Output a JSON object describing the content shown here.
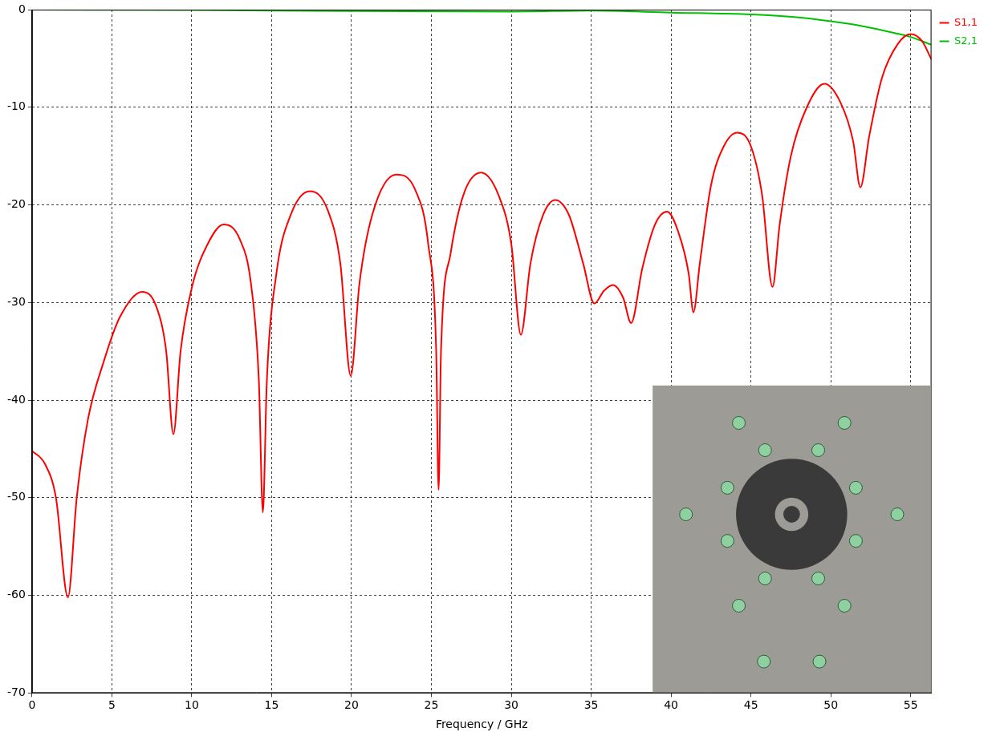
{
  "chart_data": {
    "type": "line",
    "x_label": "Frequency / GHz",
    "xlim": [
      0,
      56.3
    ],
    "xticks": [
      0,
      5,
      10,
      15,
      20,
      25,
      30,
      35,
      40,
      45,
      50,
      55
    ],
    "ylim": [
      -70,
      0
    ],
    "yticks": [
      -70,
      -60,
      -50,
      -40,
      -30,
      -20,
      -10,
      0
    ],
    "grid": true,
    "legend": "right",
    "series": [
      {
        "name": "S1,1",
        "color": "#ff0000",
        "x": [
          0,
          0.8,
          1.5,
          2.25,
          2.8,
          3.5,
          4.5,
          5.5,
          6.9,
          7.8,
          8.4,
          8.85,
          9.3,
          10,
          11,
          12,
          13,
          13.7,
          14.2,
          14.45,
          14.7,
          15.3,
          16.2,
          17.4,
          18.5,
          19.3,
          19.95,
          20.5,
          21.3,
          22.8,
          24,
          24.8,
          25.3,
          25.45,
          25.6,
          26.2,
          27,
          28.1,
          29.2,
          30,
          30.6,
          31.2,
          32,
          32.75,
          33.6,
          34.5,
          35.2,
          35.8,
          36.35,
          37,
          37.5,
          38.2,
          39,
          39.75,
          40.5,
          41.1,
          41.4,
          41.8,
          42.5,
          43.3,
          44.15,
          45,
          45.7,
          46.35,
          46.8,
          47.5,
          48.5,
          49.6,
          50.6,
          51.4,
          51.85,
          52.4,
          53.2,
          54.2,
          55,
          55.7,
          56.3
        ],
        "values": [
          -45.2,
          -46.5,
          -50,
          -60.2,
          -50,
          -42,
          -36,
          -31.5,
          -28.9,
          -30.5,
          -35,
          -43.5,
          -35,
          -28.5,
          -24,
          -22,
          -23.5,
          -28,
          -38,
          -51.5,
          -38,
          -27,
          -21,
          -18.6,
          -20.5,
          -26,
          -37.5,
          -28,
          -21,
          -16.9,
          -18.5,
          -24,
          -35,
          -49.2,
          -35,
          -25,
          -19,
          -16.7,
          -19,
          -24,
          -33.3,
          -26,
          -21,
          -19.5,
          -21,
          -26,
          -30.1,
          -28.8,
          -28.2,
          -29.5,
          -32.1,
          -26.5,
          -22,
          -20.7,
          -23,
          -27,
          -31,
          -26,
          -18,
          -14,
          -12.6,
          -14,
          -19,
          -28.4,
          -22,
          -15,
          -10,
          -7.6,
          -9.5,
          -13.5,
          -18.2,
          -13,
          -7,
          -3.5,
          -2.5,
          -3.2,
          -5.1
        ]
      },
      {
        "name": "S2,1",
        "color": "#00c000",
        "x": [
          0,
          10,
          20,
          30,
          35,
          40,
          45,
          48,
          50,
          52,
          54,
          55,
          56.3
        ],
        "values": [
          0,
          -0.05,
          -0.15,
          -0.2,
          -0.1,
          -0.3,
          -0.5,
          -0.8,
          -1.2,
          -1.7,
          -2.4,
          -2.8,
          -3.6
        ]
      }
    ]
  }
}
